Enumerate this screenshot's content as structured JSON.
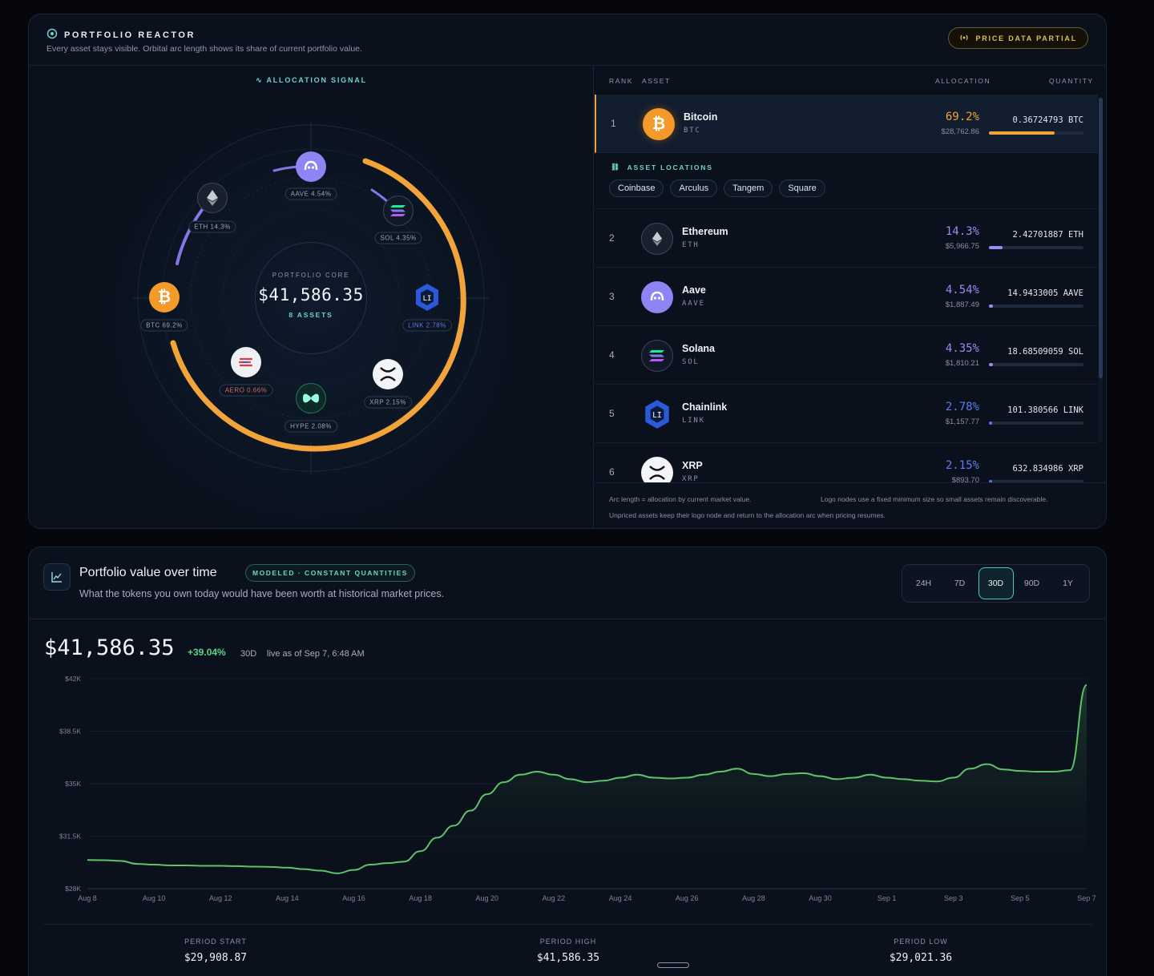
{
  "reactor": {
    "title": "PORTFOLIO REACTOR",
    "subtitle": "Every asset stays visible. Orbital arc length shows its share of current portfolio value.",
    "status_badge": "PRICE DATA PARTIAL",
    "signal_label": "ALLOCATION SIGNAL",
    "core": {
      "label": "PORTFOLIO CORE",
      "value": "$41,586.35",
      "count": "8 ASSETS"
    },
    "node_labels": {
      "btc": "BTC 69.2%",
      "eth": "ETH 14.3%",
      "aave": "AAVE 4.54%",
      "sol": "SOL 4.35%",
      "link": "LINK 2.78%",
      "xrp": "XRP 2.15%",
      "hype": "HYPE 2.08%",
      "aero": "AERO 0.66%"
    },
    "table_headers": {
      "rank": "RANK",
      "asset": "ASSET",
      "allocation": "ALLOCATION",
      "quantity": "QUANTITY"
    },
    "locations_title": "ASSET LOCATIONS",
    "locations": [
      "Coinbase",
      "Arculus",
      "Tangem",
      "Square"
    ],
    "assets": [
      {
        "rank": "1",
        "name": "Bitcoin",
        "symbol": "BTC",
        "pct": "69.2%",
        "value": "$28,762.86",
        "qty": "0.36724793 BTC",
        "share": 0.692,
        "color": "#f2a33a"
      },
      {
        "rank": "2",
        "name": "Ethereum",
        "symbol": "ETH",
        "pct": "14.3%",
        "value": "$5,966.75",
        "qty": "2.42701887 ETH",
        "share": 0.143,
        "color": "#9b8cf5"
      },
      {
        "rank": "3",
        "name": "Aave",
        "symbol": "AAVE",
        "pct": "4.54%",
        "value": "$1,887.49",
        "qty": "14.9433005 AAVE",
        "share": 0.0454,
        "color": "#9b8cf5"
      },
      {
        "rank": "4",
        "name": "Solana",
        "symbol": "SOL",
        "pct": "4.35%",
        "value": "$1,810.21",
        "qty": "18.68509059 SOL",
        "share": 0.0435,
        "color": "#9b8cf5"
      },
      {
        "rank": "5",
        "name": "Chainlink",
        "symbol": "LINK",
        "pct": "2.78%",
        "value": "$1,157.77",
        "qty": "101.380566 LINK",
        "share": 0.0278,
        "color": "#5f6ff0"
      },
      {
        "rank": "6",
        "name": "XRP",
        "symbol": "XRP",
        "pct": "2.15%",
        "value": "$893.70",
        "qty": "632.834986 XRP",
        "share": 0.0215,
        "color": "#5f6ff0"
      }
    ],
    "footer": {
      "note1": "Arc length = allocation by current market value.",
      "note2": "Logo nodes use a fixed minimum size so small assets remain discoverable.",
      "note3": "Unpriced assets keep their logo node and return to the allocation arc when pricing resumes."
    }
  },
  "value_panel": {
    "title": "Portfolio value over time",
    "badge": "MODELED · CONSTANT QUANTITIES",
    "subtitle": "What the tokens you own today would have been worth at historical market prices.",
    "ranges": [
      "24H",
      "7D",
      "30D",
      "90D",
      "1Y"
    ],
    "active_range": "30D",
    "current_value": "$41,586.35",
    "change": "+39.04%",
    "period": "30D",
    "as_of": "live as of Sep 7, 6:48 AM",
    "stats": [
      {
        "label": "PERIOD START",
        "value": "$29,908.87"
      },
      {
        "label": "PERIOD HIGH",
        "value": "$41,586.35"
      },
      {
        "label": "PERIOD LOW",
        "value": "$29,021.36"
      }
    ]
  },
  "colors": {
    "accent": "#f2a33a",
    "teal": "#6fd2c8",
    "positive": "#58d38a",
    "line": "#5fc26a",
    "eth_purple": "#9b8cf5",
    "link_blue": "#5f6ff0"
  },
  "chart_data": {
    "type": "area",
    "title": "",
    "xlabel": "",
    "ylabel": "",
    "ylim": [
      28000,
      42000
    ],
    "y_ticks": [
      "$42K",
      "$38.5K",
      "$35K",
      "$31.5K",
      "$28K"
    ],
    "x_ticks": [
      "Aug 8",
      "Aug 10",
      "Aug 12",
      "Aug 14",
      "Aug 16",
      "Aug 18",
      "Aug 20",
      "Aug 22",
      "Aug 24",
      "Aug 26",
      "Aug 28",
      "Aug 30",
      "Sep 1",
      "Sep 3",
      "Sep 5",
      "Sep 7"
    ],
    "x": [
      0,
      0.5,
      1,
      1.5,
      2,
      2.5,
      3,
      3.5,
      4,
      4.5,
      5,
      5.5,
      6,
      6.5,
      7,
      7.5,
      8,
      8.5,
      9,
      9.5,
      10,
      10.5,
      11,
      11.5,
      12,
      12.5,
      13,
      13.5,
      14,
      14.5,
      15,
      15.5,
      16,
      16.5,
      17,
      17.5,
      18,
      18.5,
      19,
      19.5,
      20,
      20.5,
      21,
      21.5,
      22,
      22.5,
      23,
      23.5,
      24,
      24.5,
      25,
      25.5,
      26,
      26.5,
      27,
      27.5,
      28,
      28.5,
      29,
      29.5,
      30
    ],
    "series": [
      {
        "values": [
          29908,
          29900,
          29850,
          29650,
          29600,
          29550,
          29550,
          29520,
          29520,
          29500,
          29470,
          29450,
          29400,
          29300,
          29200,
          29021,
          29250,
          29600,
          29700,
          29800,
          30500,
          31400,
          32200,
          33200,
          34300,
          35100,
          35600,
          35800,
          35600,
          35300,
          35100,
          35200,
          35400,
          35600,
          35400,
          35350,
          35400,
          35600,
          35800,
          36000,
          35650,
          35500,
          35650,
          35700,
          35500,
          35300,
          35400,
          35600,
          35400,
          35300,
          35200,
          35150,
          35400,
          36000,
          36300,
          35950,
          35850,
          35800,
          35800,
          35900,
          41586
        ]
      }
    ]
  }
}
